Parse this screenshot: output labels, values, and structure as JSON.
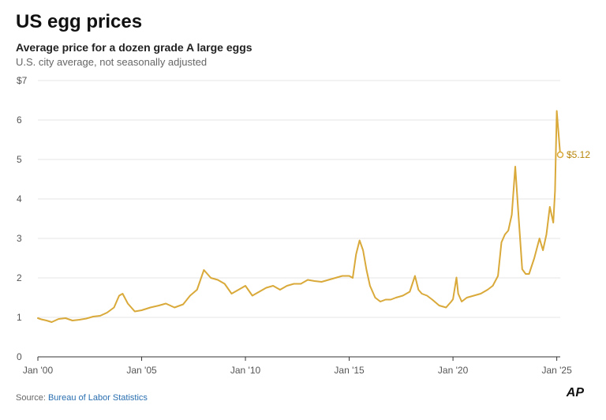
{
  "header": {
    "title": "US egg prices",
    "subtitle": "Average price for a dozen grade A large eggs",
    "note": "U.S. city average, not seasonally adjusted"
  },
  "footer": {
    "source_prefix": "Source: ",
    "source_link": "Bureau of Labor Statistics",
    "logo": "AP"
  },
  "colors": {
    "line": "#d9a93a",
    "grid": "#e6e6e6",
    "axis": "#333333"
  },
  "chart_data": {
    "type": "line",
    "title": "US egg prices",
    "subtitle": "Average price for a dozen grade A large eggs",
    "xlabel": "",
    "ylabel": "",
    "ylim": [
      0,
      7
    ],
    "xlim": [
      "2000-01",
      "2025-03"
    ],
    "grid": true,
    "y_ticks": [
      0,
      1,
      2,
      3,
      4,
      5,
      6,
      7
    ],
    "y_tick_labels": [
      "0",
      "1",
      "2",
      "3",
      "4",
      "5",
      "6",
      "$7"
    ],
    "x_ticks": [
      "2000-01",
      "2005-01",
      "2010-01",
      "2015-01",
      "2020-01",
      "2025-01"
    ],
    "x_tick_labels": [
      "Jan '00",
      "Jan '05",
      "Jan '10",
      "Jan '15",
      "Jan '20",
      "Jan '25"
    ],
    "end_label": "$5.12",
    "series": [
      {
        "x": [
          "2000-01",
          "2000-03",
          "2000-06",
          "2000-09",
          "2001-01",
          "2001-05",
          "2001-09",
          "2002-01",
          "2002-05",
          "2002-09",
          "2003-01",
          "2003-05",
          "2003-09",
          "2003-12",
          "2004-02",
          "2004-05",
          "2004-09",
          "2005-01",
          "2005-06",
          "2005-11",
          "2006-03",
          "2006-08",
          "2007-01",
          "2007-05",
          "2007-09",
          "2008-01",
          "2008-05",
          "2008-09",
          "2009-01",
          "2009-05",
          "2009-09",
          "2010-01",
          "2010-05",
          "2010-09",
          "2011-01",
          "2011-05",
          "2011-09",
          "2012-01",
          "2012-05",
          "2012-09",
          "2013-01",
          "2013-05",
          "2013-09",
          "2014-01",
          "2014-05",
          "2014-09",
          "2015-01",
          "2015-03",
          "2015-05",
          "2015-07",
          "2015-09",
          "2015-11",
          "2016-01",
          "2016-04",
          "2016-07",
          "2016-10",
          "2017-01",
          "2017-04",
          "2017-08",
          "2017-12",
          "2018-03",
          "2018-05",
          "2018-07",
          "2018-10",
          "2019-01",
          "2019-05",
          "2019-09",
          "2019-12",
          "2020-01",
          "2020-03",
          "2020-04",
          "2020-06",
          "2020-09",
          "2021-01",
          "2021-05",
          "2021-09",
          "2021-12",
          "2022-03",
          "2022-05",
          "2022-07",
          "2022-09",
          "2022-11",
          "2023-01",
          "2023-03",
          "2023-05",
          "2023-07",
          "2023-09",
          "2023-12",
          "2024-03",
          "2024-05",
          "2024-07",
          "2024-09",
          "2024-11",
          "2024-12",
          "2025-01",
          "2025-03"
        ],
        "y": [
          0.98,
          0.95,
          0.92,
          0.88,
          0.96,
          0.98,
          0.92,
          0.94,
          0.97,
          1.02,
          1.04,
          1.12,
          1.25,
          1.55,
          1.6,
          1.35,
          1.15,
          1.18,
          1.25,
          1.3,
          1.35,
          1.25,
          1.33,
          1.55,
          1.7,
          2.2,
          2.0,
          1.95,
          1.85,
          1.6,
          1.7,
          1.8,
          1.55,
          1.65,
          1.75,
          1.8,
          1.7,
          1.8,
          1.85,
          1.85,
          1.95,
          1.92,
          1.9,
          1.95,
          2.0,
          2.05,
          2.05,
          2.0,
          2.6,
          2.95,
          2.7,
          2.2,
          1.8,
          1.5,
          1.4,
          1.45,
          1.45,
          1.5,
          1.55,
          1.65,
          2.05,
          1.7,
          1.6,
          1.55,
          1.45,
          1.3,
          1.25,
          1.4,
          1.46,
          2.01,
          1.6,
          1.4,
          1.5,
          1.55,
          1.6,
          1.7,
          1.8,
          2.05,
          2.9,
          3.1,
          3.2,
          3.6,
          4.82,
          3.5,
          2.22,
          2.1,
          2.1,
          2.5,
          3.0,
          2.7,
          3.1,
          3.8,
          3.4,
          4.2,
          6.23,
          5.12
        ]
      }
    ]
  }
}
